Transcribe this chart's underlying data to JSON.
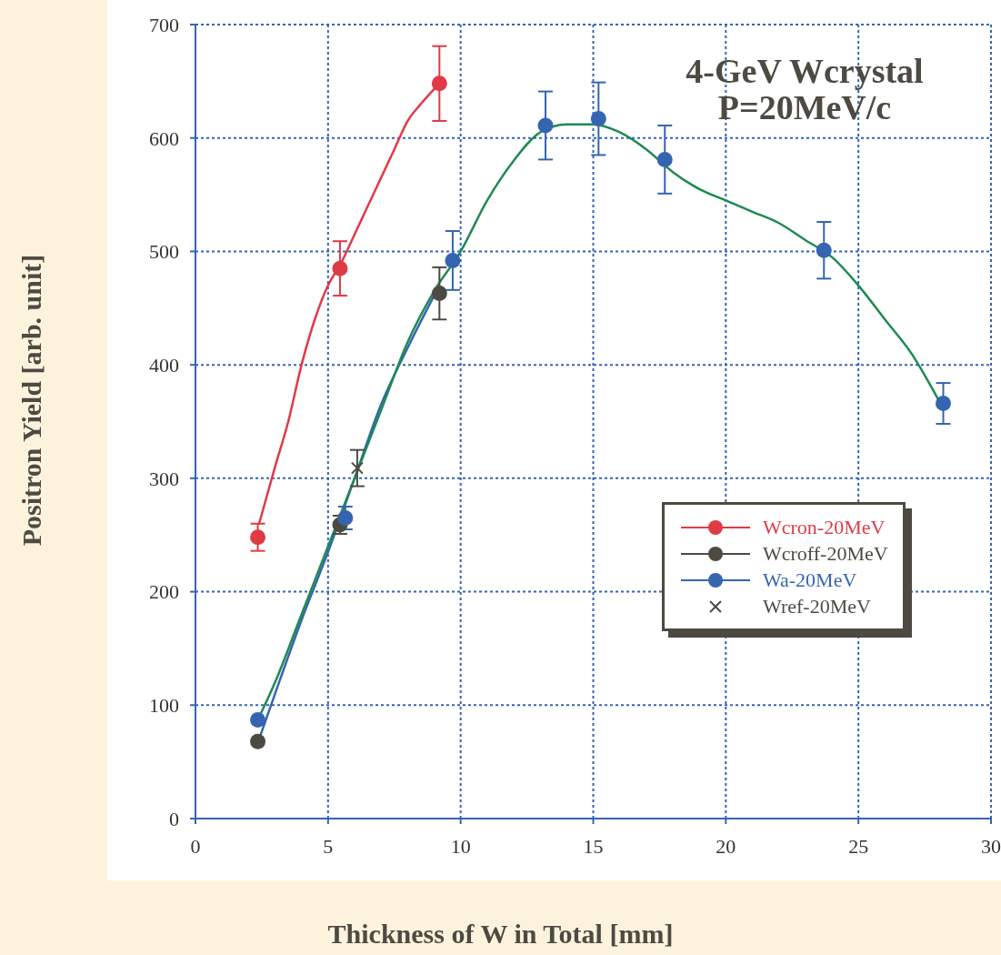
{
  "chart_data": {
    "type": "scatter",
    "title": "4-GeV Wcrystal",
    "subtitle": "P=20MeV/c",
    "xlabel": "Thickness of W in Total [mm]",
    "ylabel": "Positron Yield [arb. unit]",
    "xlim": [
      0,
      30
    ],
    "xticks": [
      0,
      5,
      10,
      15,
      20,
      25,
      30
    ],
    "ylim": [
      0,
      700
    ],
    "yticks": [
      0,
      100,
      200,
      300,
      400,
      500,
      600,
      700
    ],
    "grid": true,
    "legend": "right",
    "series": [
      {
        "type": "line",
        "color": "#e03a45",
        "marker": "none",
        "line_style": "solid",
        "x": [
          2.4,
          3,
          3.5,
          4,
          4.5,
          5,
          5.5,
          6,
          6.5,
          7,
          7.5,
          8,
          8.5,
          9.2
        ],
        "values": [
          260,
          310,
          350,
          400,
          440,
          470,
          490,
          515,
          540,
          565,
          590,
          615,
          630,
          648
        ]
      },
      {
        "type": "line",
        "color": "#3565b0",
        "marker": "none",
        "line_style": "solid",
        "x": [
          2.4,
          3,
          4,
          5,
          6,
          7,
          8,
          9.2
        ],
        "values": [
          70,
          110,
          175,
          235,
          300,
          365,
          415,
          470
        ]
      },
      {
        "type": "line",
        "color": "#1e8a50",
        "marker": "none",
        "line_style": "solid",
        "x": [
          2.35,
          3,
          4,
          5,
          6,
          7,
          8,
          9,
          10,
          11,
          12,
          13,
          14,
          15,
          16,
          17,
          18,
          19,
          20,
          21,
          22,
          23,
          24,
          25,
          26,
          27,
          28
        ],
        "values": [
          87,
          120,
          180,
          240,
          300,
          360,
          420,
          465,
          500,
          545,
          580,
          605,
          612,
          612,
          605,
          590,
          570,
          555,
          545,
          535,
          525,
          510,
          495,
          470,
          440,
          410,
          370
        ]
      },
      {
        "name": "Wcron-20MeV",
        "color": "#e03a45",
        "marker": "circle",
        "x": [
          2.35,
          5.45,
          9.2
        ],
        "values": [
          248,
          485,
          648
        ],
        "errors": [
          12,
          24,
          33
        ]
      },
      {
        "name": "Wcroff-20MeV",
        "color": "#4d4a42",
        "marker": "circle",
        "x": [
          2.35,
          5.45,
          9.2
        ],
        "values": [
          68,
          259,
          463
        ],
        "errors": [
          null,
          8,
          23
        ]
      },
      {
        "name": "Wa-20MeV",
        "color": "#3565b0",
        "marker": "circle",
        "x": [
          2.35,
          5.65,
          9.7,
          13.2,
          15.2,
          17.7,
          23.7,
          28.2
        ],
        "values": [
          87,
          265,
          492,
          611,
          617,
          581,
          501,
          366
        ],
        "errors": [
          null,
          10,
          26,
          30,
          32,
          30,
          25,
          18
        ]
      },
      {
        "name": "Wref-20MeV",
        "color": "#4d4a42",
        "marker": "cross",
        "x": [
          6.1
        ],
        "values": [
          309
        ],
        "errors": [
          16
        ]
      }
    ]
  }
}
